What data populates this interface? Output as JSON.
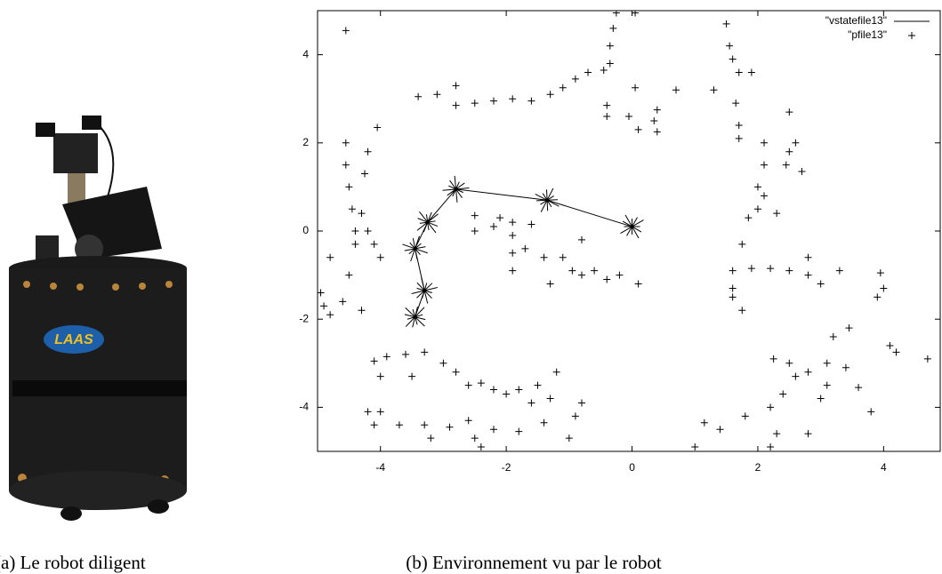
{
  "figure_a": {
    "caption": "(a) Le robot diligent",
    "logo_text": "LAAS"
  },
  "figure_b": {
    "caption": "(b) Environnement vu par le robot"
  },
  "chart_data": {
    "type": "scatter",
    "xlim": [
      -5,
      4.9
    ],
    "ylim": [
      -5,
      5
    ],
    "xticks": [
      -4,
      -2,
      0,
      2,
      4
    ],
    "yticks": [
      -4,
      -2,
      0,
      2,
      4
    ],
    "legend": "upper right",
    "series": [
      {
        "name": "\"vstatefile13\"",
        "mode": "line",
        "color": "#000000",
        "x": [
          0.0,
          -1.35,
          -2.8,
          -3.25,
          -3.45,
          -3.3,
          -3.45
        ],
        "values": [
          0.1,
          0.7,
          0.95,
          0.2,
          -0.4,
          -1.35,
          -1.95
        ]
      },
      {
        "name": "\"pfile13\"",
        "mode": "markers",
        "color": "#000000",
        "x": [
          -4.55,
          -4.55,
          -4.5,
          -4.45,
          -4.4,
          -4.4,
          -4.3,
          -4.2,
          -4.1,
          -4.0,
          -4.2,
          -4.25,
          -4.05,
          -4.55,
          -4.95,
          -4.9,
          -4.8,
          -4.6,
          -4.3,
          -4.5,
          -4.8,
          -3.4,
          -3.1,
          -2.8,
          -2.8,
          -2.5,
          -2.2,
          -1.9,
          -1.6,
          -1.3,
          -1.1,
          -0.9,
          -0.7,
          -0.45,
          -0.35,
          -0.35,
          -0.3,
          -0.25,
          0.05,
          0.05,
          0.7,
          -0.4,
          -0.4,
          -0.05,
          0.1,
          0.35,
          0.4,
          0.4,
          -2.5,
          -2.5,
          -2.2,
          -1.9,
          -1.6,
          -1.9,
          -1.9,
          -1.9,
          -1.7,
          -1.4,
          -1.1,
          -0.95,
          -1.3,
          -0.8,
          -0.6,
          -0.4,
          -0.2,
          0.1,
          -2.1,
          -0.8,
          1.5,
          1.55,
          1.6,
          1.7,
          1.9,
          1.3,
          1.65,
          1.7,
          1.7,
          2.1,
          2.5,
          2.5,
          2.45,
          2.7,
          2.6,
          2.1,
          2.0,
          2.1,
          2.0,
          1.85,
          1.75,
          2.3,
          1.6,
          1.6,
          1.6,
          1.9,
          2.2,
          2.5,
          2.8,
          3.0,
          2.8,
          3.3,
          3.95,
          1.75,
          4.0,
          3.9,
          -4.1,
          -3.9,
          -3.6,
          -3.3,
          -3.0,
          -2.8,
          -3.5,
          -2.6,
          -2.4,
          -2.2,
          -2.0,
          -1.8,
          -1.5,
          -1.6,
          -1.3,
          -1.2,
          -0.8,
          -4.2,
          -4.0,
          -4.1,
          -3.7,
          -3.3,
          -2.9,
          -2.6,
          -2.2,
          -1.8,
          -1.4,
          -2.5,
          -2.4,
          -1.0,
          -3.2,
          -0.9,
          -4.0,
          1.0,
          1.15,
          1.4,
          1.8,
          2.2,
          2.3,
          2.2,
          2.4,
          2.6,
          2.8,
          2.8,
          3.0,
          3.1,
          3.1,
          3.2,
          3.4,
          3.45,
          3.6,
          3.8,
          4.1,
          4.2,
          4.7,
          2.25,
          2.5
        ],
        "values": [
          2.0,
          1.5,
          1.0,
          0.5,
          0.0,
          -0.3,
          0.4,
          0.0,
          -0.3,
          -0.6,
          1.8,
          1.3,
          2.35,
          4.55,
          -1.4,
          -1.7,
          -1.9,
          -1.6,
          -1.8,
          -1.0,
          -0.6,
          3.05,
          3.1,
          3.3,
          2.85,
          2.9,
          2.95,
          3.0,
          2.95,
          3.1,
          3.25,
          3.45,
          3.6,
          3.65,
          3.8,
          4.2,
          4.6,
          4.95,
          4.95,
          3.25,
          3.2,
          2.85,
          2.6,
          2.6,
          2.3,
          2.5,
          2.25,
          2.75,
          0.35,
          0.0,
          0.1,
          0.2,
          0.15,
          -0.1,
          -0.5,
          -0.9,
          -0.4,
          -0.6,
          -0.6,
          -0.9,
          -1.2,
          -1.0,
          -0.9,
          -1.1,
          -1.0,
          -1.2,
          0.3,
          -0.2,
          4.7,
          4.2,
          3.9,
          3.6,
          3.6,
          3.2,
          2.9,
          2.4,
          2.1,
          2.0,
          2.7,
          1.8,
          1.5,
          1.35,
          2.0,
          1.5,
          1.0,
          0.8,
          0.5,
          0.3,
          -0.3,
          0.4,
          -0.9,
          -1.3,
          -1.5,
          -0.85,
          -0.85,
          -0.9,
          -1.0,
          -1.2,
          -0.6,
          -0.9,
          -0.95,
          -1.8,
          -1.3,
          -1.5,
          -2.95,
          -2.85,
          -2.8,
          -2.75,
          -3.0,
          -3.2,
          -3.3,
          -3.5,
          -3.45,
          -3.6,
          -3.7,
          -3.6,
          -3.5,
          -3.9,
          -3.8,
          -3.2,
          -3.9,
          -4.1,
          -4.1,
          -4.4,
          -4.4,
          -4.4,
          -4.45,
          -4.3,
          -4.5,
          -4.55,
          -4.35,
          -4.7,
          -4.9,
          -4.7,
          -4.7,
          -4.2,
          -3.3,
          -4.9,
          -4.35,
          -4.5,
          -4.2,
          -4.9,
          -4.6,
          -4.0,
          -3.7,
          -3.3,
          -3.2,
          -4.6,
          -3.8,
          -3.5,
          -3.0,
          -2.4,
          -3.1,
          -2.2,
          -3.55,
          -4.1,
          -2.6,
          -2.75,
          -2.9,
          -2.9,
          -3.0
        ]
      }
    ]
  }
}
